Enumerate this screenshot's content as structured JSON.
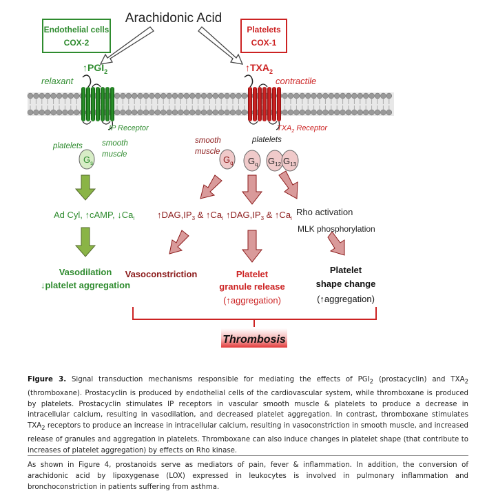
{
  "diagram": {
    "title": "Arachidonic Acid",
    "endothelial_box": {
      "line1": "Endothelial cells",
      "line2": "COX-2"
    },
    "platelets_box": {
      "line1": "Platelets",
      "line2": "COX-1"
    },
    "pgi2": {
      "arrow": "↑",
      "name": "PGI",
      "sub": "2"
    },
    "txa2": {
      "arrow": "↑",
      "name": "TXA",
      "sub": "2"
    },
    "relaxant": "relaxant",
    "contractile": "contractile",
    "ip_receptor": "IP Receptor",
    "txa2_receptor": {
      "pre": "TXA",
      "sub": "2",
      "post": " Receptor"
    },
    "left_platelets": "platelets",
    "left_smooth": "smooth",
    "left_muscle": "muscle",
    "gs": {
      "main": "G",
      "sub": "s"
    },
    "right_smooth": "smooth",
    "right_muscle": "muscle",
    "right_platelets": "platelets",
    "gq1": {
      "main": "G",
      "sub": "q"
    },
    "gq2": {
      "main": "G",
      "sub": "q"
    },
    "g12": {
      "main": "G",
      "sub": "12"
    },
    "g13": {
      "main": "G",
      "sub": "13"
    },
    "adcyl": {
      "text": "Ad Cyl, ↑cAMP, ↓Ca",
      "sub": "i"
    },
    "dag1": {
      "a": "↑DAG,IP",
      "s1": "3",
      "b": " & ↑Ca",
      "s2": "i"
    },
    "dag2": {
      "a": "↑DAG,IP",
      "s1": "3",
      "b": " & ↑Ca",
      "s2": "i"
    },
    "rho_activation": "Rho activation",
    "mlk": "MLK phosphorylation",
    "vasodilation": "Vasodilation",
    "platelet_aggregation": "↓platelet aggregation",
    "vasoconstriction": "Vasoconstriction",
    "granule": {
      "line1": "Platelet",
      "line2": "granule release",
      "line3": "(↑aggregation)"
    },
    "shape": {
      "line1": "Platelet",
      "line2": "shape change",
      "line3": "(↑aggregation)"
    },
    "thrombosis": "Thrombosis",
    "colors": {
      "green": "#2e8b2e",
      "red": "#cc2222",
      "dark_red": "#8b1a1a",
      "pink_arrow": "#d99a9a",
      "green_arrow": "#8ab446"
    }
  },
  "caption": {
    "label": "Figure 3.",
    "p1": " Signal transduction mechanisms responsible for mediating the effects of PGI",
    "s1": "2",
    "p2": " (prostacyclin) and TXA",
    "s2": "2",
    "p3": " (thromboxane). Prostacyclin is produced by endothelial cells of the cardiovascular system, while thromboxane is produced by platelets. Prostacyclin stimulates IP receptors in vascular smooth muscle & platelets to produce a decrease in intracellular calcium, resulting in vasodilation, and decreased platelet aggregation. In contrast, thromboxane stimulates TXA",
    "s3": "2",
    "p4": " receptors to produce an increase in intracellular calcium, resulting in vasoconstriction in smooth muscle, and increased release of granules and aggregation in platelets. Thromboxane can also induce changes in platelet shape (that contribute to increases of platelet aggregation) by effects on Rho kinase."
  },
  "body_text": "As shown in Figure 4, prostanoids serve as mediators of pain, fever & inflammation. In addition, the conversion of arachidonic acid by lipoxygenase (LOX) expressed in leukocytes is involved in pulmonary inflammation and bronchoconstriction in patients suffering from asthma."
}
